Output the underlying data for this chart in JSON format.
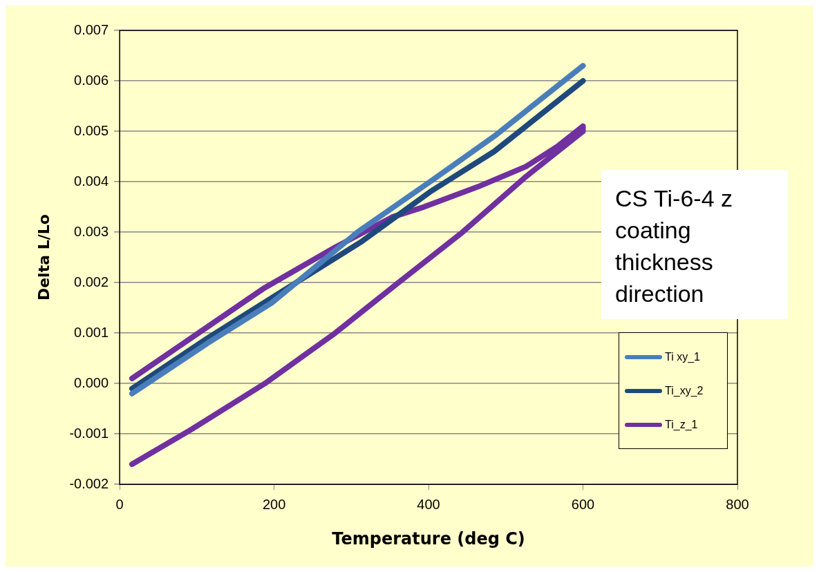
{
  "chart_data": {
    "type": "line",
    "xlabel": "Temperature (deg C)",
    "ylabel": "Delta L/Lo",
    "xlim": [
      0,
      800
    ],
    "xticks": [
      0,
      200,
      400,
      600,
      800
    ],
    "ylim": [
      -0.002,
      0.007
    ],
    "yticks": [
      {
        "value": -0.002,
        "label": "-0.002"
      },
      {
        "value": -0.001,
        "label": "-0.001"
      },
      {
        "value": 0,
        "label": "0.000"
      },
      {
        "value": 0.001,
        "label": "0.001"
      },
      {
        "value": 0.002,
        "label": "0.002"
      },
      {
        "value": 0.003,
        "label": "0.003"
      },
      {
        "value": 0.004,
        "label": "0.004"
      },
      {
        "value": 0.005,
        "label": "0.005"
      },
      {
        "value": 0.006,
        "label": "0.006"
      },
      {
        "value": 0.007,
        "label": "0.007"
      }
    ],
    "grid": "y",
    "legend": "bottom right",
    "marker": "none",
    "line_style": "solid",
    "annotations": [
      "CS Ti-6-4 z coating thickness direction"
    ],
    "series": [
      {
        "name": "Ti xy_1",
        "color": "#4a7ebb",
        "x": [
          16,
          114,
          197,
          308,
          402,
          485,
          600
        ],
        "values": [
          -0.0002,
          0.0008,
          0.0016,
          0.003,
          0.004,
          0.0049,
          0.0063
        ]
      },
      {
        "name": "Ti_xy_2",
        "color": "#1f497d",
        "x": [
          16,
          114,
          197,
          312,
          402,
          485,
          600
        ],
        "values": [
          -0.0001,
          0.0009,
          0.0017,
          0.0028,
          0.0038,
          0.0046,
          0.006
        ]
      },
      {
        "name": "Ti_z_1",
        "color": "#7030a0",
        "x": [
          16,
          102,
          188,
          279,
          353,
          394,
          464,
          526,
          567,
          600,
          600,
          526,
          444,
          361,
          279,
          188,
          94,
          16
        ],
        "values": [
          0.0001,
          0.001,
          0.0019,
          0.0027,
          0.0033,
          0.0035,
          0.0039,
          0.0043,
          0.0047,
          0.0051,
          0.005,
          0.0041,
          0.003,
          0.002,
          0.001,
          0.0,
          -0.0009,
          -0.0016
        ]
      }
    ]
  }
}
